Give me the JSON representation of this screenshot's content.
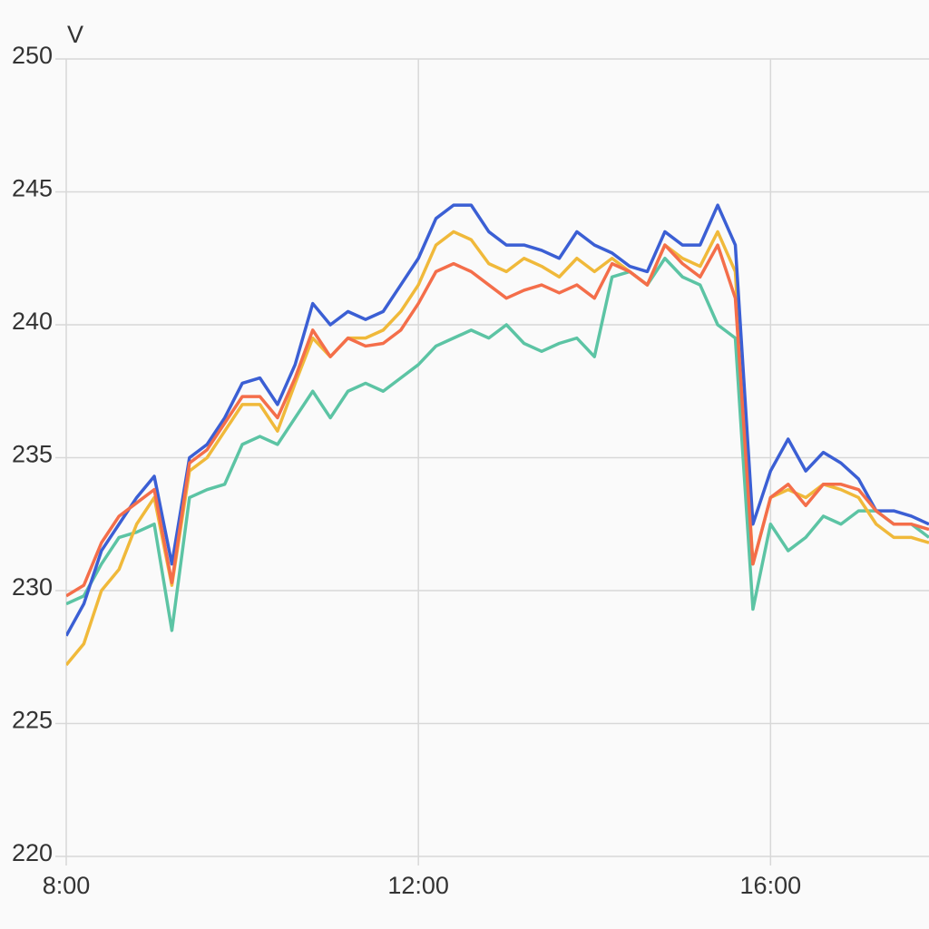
{
  "chart_data": {
    "type": "line",
    "y_label": "V",
    "x": [
      8.0,
      8.2,
      8.4,
      8.6,
      8.8,
      9.0,
      9.2,
      9.4,
      9.6,
      9.8,
      10.0,
      10.2,
      10.4,
      10.6,
      10.8,
      11.0,
      11.2,
      11.4,
      11.6,
      11.8,
      12.0,
      12.2,
      12.4,
      12.6,
      12.8,
      13.0,
      13.2,
      13.4,
      13.6,
      13.8,
      14.0,
      14.2,
      14.4,
      14.6,
      14.8,
      15.0,
      15.2,
      15.4,
      15.6,
      15.8,
      16.0,
      16.2,
      16.4,
      16.6,
      16.8,
      17.0,
      17.2,
      17.4,
      17.6,
      17.8
    ],
    "series": [
      {
        "color": "#5cc4a4",
        "values": [
          229.5,
          229.8,
          231,
          232,
          232.2,
          232.5,
          228.5,
          233.5,
          233.8,
          234,
          235.5,
          235.8,
          235.5,
          236.5,
          237.5,
          236.5,
          237.5,
          237.8,
          237.5,
          238,
          238.5,
          239.2,
          239.5,
          239.8,
          239.5,
          240,
          239.3,
          239,
          239.3,
          239.5,
          238.8,
          241.8,
          242,
          241.5,
          242.5,
          241.8,
          241.5,
          240,
          239.5,
          229.3,
          232.5,
          231.5,
          232,
          232.8,
          232.5,
          233,
          233,
          232.5,
          232.5,
          232
        ]
      },
      {
        "color": "#f0b93a",
        "values": [
          227.2,
          228,
          230,
          230.8,
          232.5,
          233.5,
          230.2,
          234.5,
          235,
          236,
          237,
          237,
          236,
          237.8,
          239.5,
          238.8,
          239.5,
          239.5,
          239.8,
          240.5,
          241.5,
          243,
          243.5,
          243.2,
          242.3,
          242,
          242.5,
          242.2,
          241.8,
          242.5,
          242,
          242.5,
          242,
          241.5,
          243,
          242.5,
          242.2,
          243.5,
          242,
          231,
          233.5,
          233.8,
          233.5,
          234,
          233.8,
          233.5,
          232.5,
          232,
          232,
          231.8
        ]
      },
      {
        "color": "#3b5fd4",
        "values": [
          228.3,
          229.5,
          231.5,
          232.5,
          233.5,
          234.3,
          231,
          235,
          235.5,
          236.5,
          237.8,
          238,
          237,
          238.5,
          240.8,
          240,
          240.5,
          240.2,
          240.5,
          241.5,
          242.5,
          244,
          244.5,
          244.5,
          243.5,
          243,
          243,
          242.8,
          242.5,
          243.5,
          243,
          242.7,
          242.2,
          242,
          243.5,
          243,
          243,
          244.5,
          243,
          232.5,
          234.5,
          235.7,
          234.5,
          235.2,
          234.8,
          234.2,
          233,
          233,
          232.8,
          232.5
        ]
      },
      {
        "color": "#f46e4a",
        "values": [
          229.8,
          230.2,
          231.8,
          232.8,
          233.3,
          233.8,
          230.3,
          234.8,
          235.3,
          236.3,
          237.3,
          237.3,
          236.5,
          238,
          239.8,
          238.8,
          239.5,
          239.2,
          239.3,
          239.8,
          240.8,
          242,
          242.3,
          242,
          241.5,
          241,
          241.3,
          241.5,
          241.2,
          241.5,
          241,
          242.3,
          242,
          241.5,
          243,
          242.3,
          241.8,
          243,
          241,
          231,
          233.5,
          234,
          233.2,
          234,
          234,
          233.8,
          233,
          232.5,
          232.5,
          232.3
        ]
      }
    ],
    "xlim": [
      8,
      17.8
    ],
    "xticks": [
      {
        "value": 8,
        "label": "8:00"
      },
      {
        "value": 12,
        "label": "12:00"
      },
      {
        "value": 16,
        "label": "16:00"
      }
    ],
    "ylim": [
      220,
      250
    ],
    "yticks": [
      220,
      225,
      230,
      235,
      240,
      245,
      250
    ],
    "grid": true
  }
}
